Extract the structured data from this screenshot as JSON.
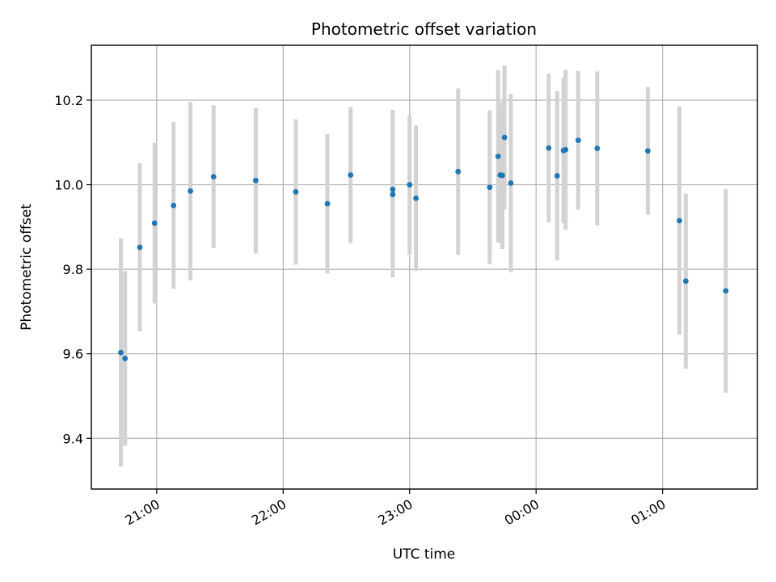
{
  "chart_data": {
    "type": "scatter",
    "title": "Photometric offset variation",
    "xlabel": "UTC time",
    "ylabel": "Photometric offset",
    "x_unit": "UTC time (clock, HH:MM)",
    "xlim": [
      "20:29",
      "25:45"
    ],
    "ylim": [
      9.28,
      10.33
    ],
    "grid": true,
    "error_bars": true,
    "colors": {
      "points": "#1f77b4",
      "error_bars": "#d3d3d3"
    },
    "x_ticks": [
      {
        "value": "21:00",
        "label": "21:00"
      },
      {
        "value": "22:00",
        "label": "22:00"
      },
      {
        "value": "23:00",
        "label": "23:00"
      },
      {
        "value": "24:00",
        "label": "00:00"
      },
      {
        "value": "25:00",
        "label": "01:00"
      }
    ],
    "y_ticks": [
      {
        "value": 9.4,
        "label": "9.4"
      },
      {
        "value": 9.6,
        "label": "9.6"
      },
      {
        "value": 9.8,
        "label": "9.8"
      },
      {
        "value": 10.0,
        "label": "10.0"
      },
      {
        "value": 10.2,
        "label": "10.2"
      }
    ],
    "points": [
      {
        "x": "20:43",
        "y": 9.603,
        "yerr": 0.27
      },
      {
        "x": "20:45",
        "y": 9.589,
        "yerr": 0.207
      },
      {
        "x": "20:52",
        "y": 9.852,
        "yerr": 0.199
      },
      {
        "x": "20:59",
        "y": 9.909,
        "yerr": 0.19
      },
      {
        "x": "21:08",
        "y": 9.951,
        "yerr": 0.197
      },
      {
        "x": "21:16",
        "y": 9.985,
        "yerr": 0.211
      },
      {
        "x": "21:27",
        "y": 10.019,
        "yerr": 0.169
      },
      {
        "x": "21:47",
        "y": 10.01,
        "yerr": 0.172
      },
      {
        "x": "22:06",
        "y": 9.983,
        "yerr": 0.172
      },
      {
        "x": "22:21",
        "y": 9.955,
        "yerr": 0.165
      },
      {
        "x": "22:32",
        "y": 10.023,
        "yerr": 0.161
      },
      {
        "x": "22:52",
        "y": 9.977,
        "yerr": 0.196
      },
      {
        "x": "22:52",
        "y": 9.989,
        "yerr": 0.188
      },
      {
        "x": "23:00",
        "y": 10.0,
        "yerr": 0.165
      },
      {
        "x": "23:03",
        "y": 9.968,
        "yerr": 0.172
      },
      {
        "x": "23:23",
        "y": 10.031,
        "yerr": 0.197
      },
      {
        "x": "23:38",
        "y": 9.994,
        "yerr": 0.182
      },
      {
        "x": "23:42",
        "y": 10.067,
        "yerr": 0.204
      },
      {
        "x": "23:43",
        "y": 10.023,
        "yerr": 0.161
      },
      {
        "x": "23:44",
        "y": 10.022,
        "yerr": 0.174
      },
      {
        "x": "23:45",
        "y": 10.112,
        "yerr": 0.17
      },
      {
        "x": "23:48",
        "y": 10.004,
        "yerr": 0.211
      },
      {
        "x": "24:06",
        "y": 10.087,
        "yerr": 0.176
      },
      {
        "x": "24:10",
        "y": 10.021,
        "yerr": 0.2
      },
      {
        "x": "24:13",
        "y": 10.081,
        "yerr": 0.172
      },
      {
        "x": "24:14",
        "y": 10.083,
        "yerr": 0.189
      },
      {
        "x": "24:20",
        "y": 10.105,
        "yerr": 0.164
      },
      {
        "x": "24:29",
        "y": 10.086,
        "yerr": 0.182
      },
      {
        "x": "24:53",
        "y": 10.08,
        "yerr": 0.151
      },
      {
        "x": "25:08",
        "y": 9.915,
        "yerr": 0.27
      },
      {
        "x": "25:11",
        "y": 9.772,
        "yerr": 0.207
      },
      {
        "x": "25:30",
        "y": 9.749,
        "yerr": 0.241
      }
    ]
  }
}
